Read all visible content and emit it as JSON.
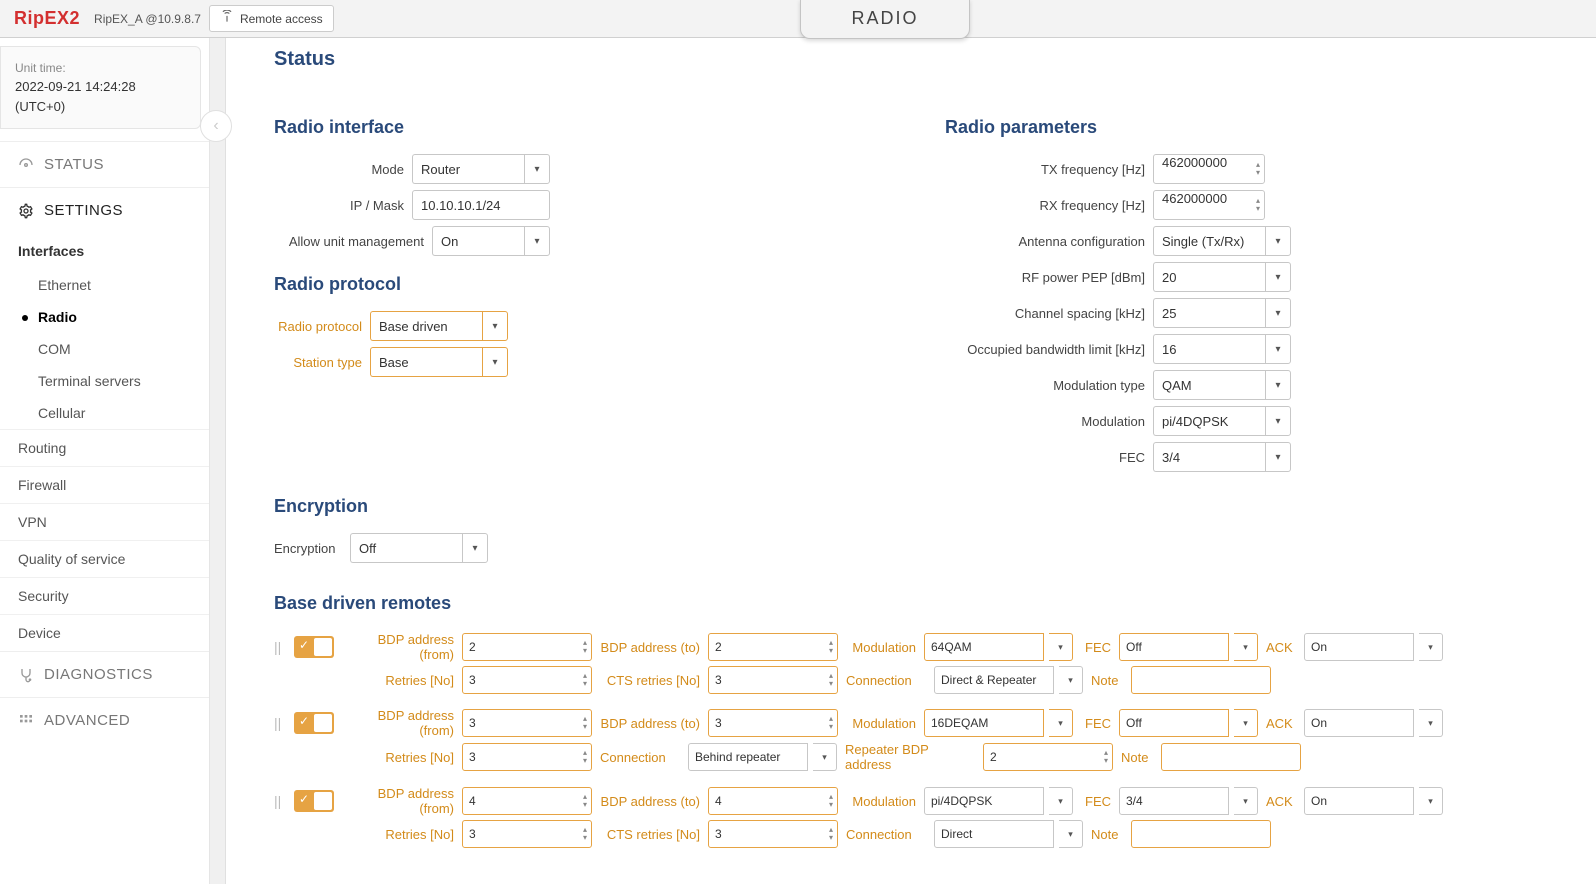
{
  "header": {
    "logo": "RipEX2",
    "unit": "RipEX_A @10.9.8.7",
    "remote_btn": "Remote access",
    "page_tab": "RADIO"
  },
  "time": {
    "label": "Unit time:",
    "value": "2022-09-21 14:24:28",
    "tz": "(UTC+0)"
  },
  "nav": {
    "status": "STATUS",
    "settings": "SETTINGS",
    "diagnostics": "DIAGNOSTICS",
    "advanced": "ADVANCED",
    "interfaces": "Interfaces",
    "sub": {
      "ethernet": "Ethernet",
      "radio": "Radio",
      "com": "COM",
      "terminal": "Terminal servers",
      "cellular": "Cellular"
    },
    "plains": {
      "routing": "Routing",
      "firewall": "Firewall",
      "vpn": "VPN",
      "qos": "Quality of service",
      "security": "Security",
      "device": "Device"
    }
  },
  "main": {
    "status": "Status",
    "radio_interface": "Radio interface",
    "radio_protocol": "Radio protocol",
    "encryption_title": "Encryption",
    "radio_parameters": "Radio parameters",
    "base_remotes": "Base driven remotes",
    "iface": {
      "mode_lbl": "Mode",
      "mode_val": "Router",
      "ip_lbl": "IP / Mask",
      "ip_val": "10.10.10.1/24",
      "mgmt_lbl": "Allow unit management",
      "mgmt_val": "On"
    },
    "proto": {
      "proto_lbl": "Radio protocol",
      "proto_val": "Base driven",
      "station_lbl": "Station type",
      "station_val": "Base"
    },
    "enc": {
      "lbl": "Encryption",
      "val": "Off"
    },
    "params": {
      "tx_lbl": "TX frequency [Hz]",
      "tx_val": "462000000",
      "rx_lbl": "RX frequency [Hz]",
      "rx_val": "462000000",
      "ant_lbl": "Antenna configuration",
      "ant_val": "Single (Tx/Rx)",
      "rf_lbl": "RF power PEP [dBm]",
      "rf_val": "20",
      "cs_lbl": "Channel spacing [kHz]",
      "cs_val": "25",
      "obw_lbl": "Occupied bandwidth limit [kHz]",
      "obw_val": "16",
      "mt_lbl": "Modulation type",
      "mt_val": "QAM",
      "m_lbl": "Modulation",
      "m_val": "pi/4DQPSK",
      "fec_lbl": "FEC",
      "fec_val": "3/4"
    },
    "labels": {
      "bdp_from": "BDP address (from)",
      "bdp_to": "BDP address (to)",
      "modulation": "Modulation",
      "fec": "FEC",
      "ack": "ACK",
      "retries": "Retries [No]",
      "cts_retries": "CTS retries [No]",
      "connection": "Connection",
      "note": "Note",
      "repeater_bdp": "Repeater BDP address"
    },
    "remotes": [
      {
        "bdp_from": "2",
        "bdp_to": "2",
        "modulation": "64QAM",
        "fec": "Off",
        "ack": "On",
        "retries": "3",
        "cts_retries": "3",
        "connection": "Direct & Repeater",
        "note": "",
        "mod_highlight": true,
        "fec_highlight": true
      },
      {
        "bdp_from": "3",
        "bdp_to": "3",
        "modulation": "16DEQAM",
        "fec": "Off",
        "ack": "On",
        "retries": "3",
        "connection": "Behind repeater",
        "repeater_bdp": "2",
        "note": "",
        "mod_highlight": true,
        "fec_highlight": true
      },
      {
        "bdp_from": "4",
        "bdp_to": "4",
        "modulation": "pi/4DQPSK",
        "fec": "3/4",
        "ack": "On",
        "retries": "3",
        "cts_retries": "3",
        "connection": "Direct",
        "note": "",
        "mod_highlight": false,
        "fec_highlight": false
      }
    ]
  }
}
